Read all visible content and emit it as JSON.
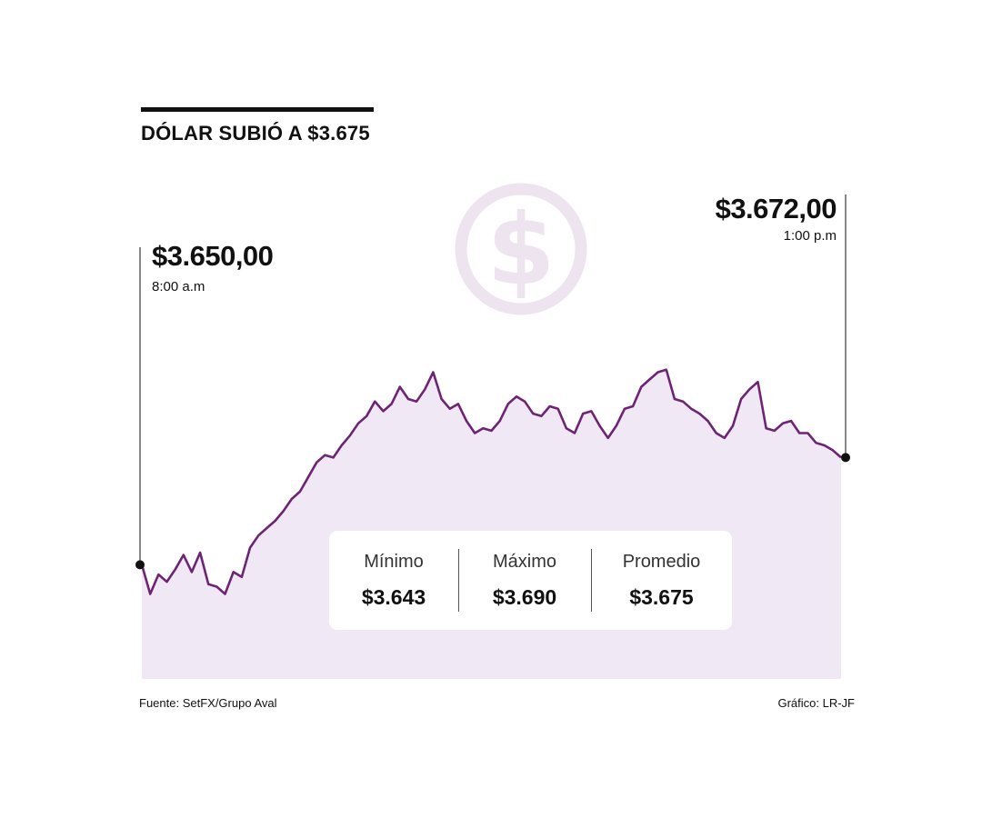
{
  "header": {
    "title": "DÓLAR SUBIÓ A $3.675"
  },
  "callouts": {
    "start_value": "$3.650,00",
    "start_time": "8:00 a.m",
    "end_value": "$3.672,00",
    "end_time": "1:00 p.m"
  },
  "stats": {
    "min_label": "Mínimo",
    "min_value": "$3.643",
    "max_label": "Máximo",
    "max_value": "$3.690",
    "avg_label": "Promedio",
    "avg_value": "$3.675"
  },
  "footer": {
    "source": "Fuente: SetFX/Grupo Aval",
    "credit": "Gráfico: LR-JF"
  },
  "colors": {
    "line": "#6e2474",
    "area": "#f0e8f4",
    "icon": "#eee4f0",
    "accent": "#111111"
  },
  "icon": "dollar-coin-icon",
  "chart_data": {
    "type": "line",
    "title": "DÓLAR SUBIÓ A $3.675",
    "x_start": "8:00 a.m",
    "x_end": "1:00 p.m",
    "ylim": [
      3640,
      3695
    ],
    "grid": false,
    "series": [
      {
        "values": [
          3650.0,
          3644.0,
          3648.0,
          3646.5,
          3649.0,
          3652.0,
          3648.5,
          3652.5,
          3646.0,
          3645.5,
          3644.0,
          3648.5,
          3647.5,
          3653.5,
          3656.0,
          3657.5,
          3659.0,
          3661.0,
          3663.5,
          3665.0,
          3668.0,
          3671.0,
          3672.5,
          3672.0,
          3674.5,
          3676.5,
          3679.0,
          3680.5,
          3683.5,
          3681.5,
          3683.0,
          3686.5,
          3684.0,
          3683.5,
          3686.0,
          3689.5,
          3684.0,
          3682.0,
          3683.0,
          3679.5,
          3677.0,
          3678.0,
          3677.5,
          3679.5,
          3683.0,
          3684.5,
          3683.5,
          3681.0,
          3680.5,
          3682.5,
          3682.0,
          3678.0,
          3677.0,
          3681.0,
          3681.5,
          3678.5,
          3676.0,
          3678.5,
          3682.0,
          3682.5,
          3686.5,
          3688.0,
          3689.5,
          3690.0,
          3684.0,
          3683.5,
          3682.0,
          3681.0,
          3679.5,
          3677.0,
          3676.0,
          3678.5,
          3684.0,
          3686.0,
          3687.5,
          3678.0,
          3677.5,
          3679.0,
          3679.5,
          3677.0,
          3677.0,
          3675.0,
          3674.5,
          3673.5,
          3672.0
        ]
      }
    ]
  }
}
